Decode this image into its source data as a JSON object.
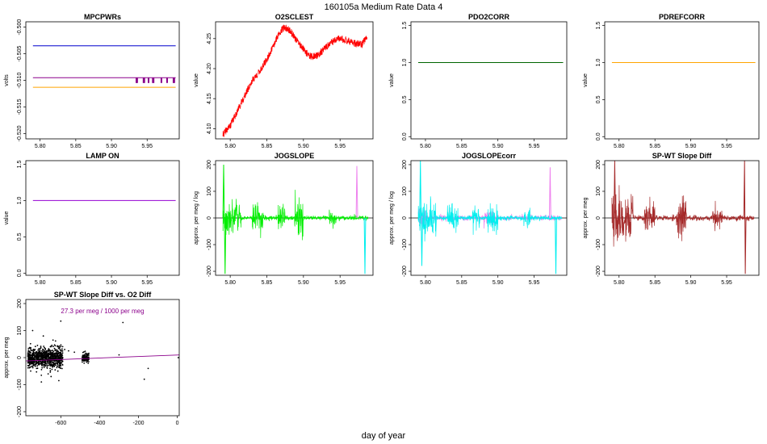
{
  "figure": {
    "title": "160105a   Medium Rate Data 4",
    "xlabel": "day of year"
  },
  "chart_data": [
    {
      "id": "mpcpwrs",
      "type": "line",
      "title": "MPCPWRs",
      "ylabel": "volts",
      "xlim": [
        5.78,
        5.995
      ],
      "ylim": [
        -0.521,
        -0.499
      ],
      "xticks": [
        5.8,
        5.85,
        5.9,
        5.95
      ],
      "xtick_labels": [
        "5.80",
        "5.85",
        "5.90",
        "5.95"
      ],
      "yticks": [
        -0.52,
        -0.515,
        -0.51,
        -0.505,
        -0.5
      ],
      "ytick_labels": [
        "-0.520",
        "-0.515",
        "-0.510",
        "-0.505",
        "-0.500"
      ],
      "ytick_rotate": true,
      "series": [
        {
          "color": "#0000cd",
          "x": [
            5.79,
            5.99
          ],
          "y": [
            -0.5035,
            -0.5035
          ]
        },
        {
          "color": "#8b008b",
          "x": [
            5.79,
            5.99
          ],
          "y": [
            -0.5095,
            -0.5095
          ]
        },
        {
          "color": "#ffa500",
          "x": [
            5.79,
            5.99
          ],
          "y": [
            -0.5113,
            -0.5113
          ]
        }
      ],
      "spikes": {
        "color": "#8b008b",
        "y_from": -0.5095,
        "y_to": -0.5105,
        "x": [
          5.935,
          5.936,
          5.945,
          5.946,
          5.952,
          5.958,
          5.959,
          5.97,
          5.978,
          5.987,
          5.988
        ]
      }
    },
    {
      "id": "o2sclest",
      "type": "line",
      "title": "O2SCLEST",
      "ylabel": "value",
      "xlim": [
        5.78,
        5.995
      ],
      "ylim": [
        4.083,
        4.278
      ],
      "xticks": [
        5.8,
        5.85,
        5.9,
        5.95
      ],
      "xtick_labels": [
        "5.80",
        "5.85",
        "5.90",
        "5.95"
      ],
      "yticks": [
        4.1,
        4.15,
        4.2,
        4.25
      ],
      "ytick_labels": [
        "4.10",
        "4.15",
        "4.20",
        "4.25"
      ],
      "ytick_rotate": true,
      "series": [
        {
          "color": "#ff0000",
          "noise": 0.012,
          "x": [
            5.79,
            5.8,
            5.81,
            5.82,
            5.83,
            5.84,
            5.85,
            5.86,
            5.865,
            5.87,
            5.875,
            5.88,
            5.885,
            5.89,
            5.895,
            5.9,
            5.905,
            5.91,
            5.92,
            5.93,
            5.94,
            5.95,
            5.96,
            5.97,
            5.98,
            5.987
          ],
          "y": [
            4.09,
            4.105,
            4.13,
            4.155,
            4.18,
            4.195,
            4.215,
            4.24,
            4.255,
            4.265,
            4.268,
            4.265,
            4.258,
            4.248,
            4.24,
            4.232,
            4.225,
            4.22,
            4.222,
            4.235,
            4.245,
            4.25,
            4.247,
            4.242,
            4.24,
            4.255
          ]
        }
      ]
    },
    {
      "id": "pdo2corr",
      "type": "line",
      "title": "PDO2CORR",
      "ylabel": "value",
      "xlim": [
        5.78,
        5.995
      ],
      "ylim": [
        -0.03,
        1.55
      ],
      "xticks": [
        5.8,
        5.85,
        5.9,
        5.95
      ],
      "xtick_labels": [
        "5.80",
        "5.85",
        "5.90",
        "5.95"
      ],
      "yticks": [
        0.0,
        0.5,
        1.0,
        1.5
      ],
      "ytick_labels": [
        "0.0",
        "0.5",
        "1.0",
        "1.5"
      ],
      "ytick_rotate": true,
      "series": [
        {
          "color": "#006400",
          "x": [
            5.79,
            5.99
          ],
          "y": [
            1.0,
            1.0
          ]
        }
      ]
    },
    {
      "id": "pdrefcorr",
      "type": "line",
      "title": "PDREFCORR",
      "ylabel": "value",
      "xlim": [
        5.78,
        5.995
      ],
      "ylim": [
        -0.03,
        1.55
      ],
      "xticks": [
        5.8,
        5.85,
        5.9,
        5.95
      ],
      "xtick_labels": [
        "5.80",
        "5.85",
        "5.90",
        "5.95"
      ],
      "yticks": [
        0.0,
        0.5,
        1.0,
        1.5
      ],
      "ytick_labels": [
        "0.0",
        "0.5",
        "1.0",
        "1.5"
      ],
      "ytick_rotate": true,
      "series": [
        {
          "color": "#ffa500",
          "x": [
            5.79,
            5.99
          ],
          "y": [
            1.0,
            1.0
          ]
        }
      ]
    },
    {
      "id": "lampon",
      "type": "line",
      "title": "LAMP ON",
      "ylabel": "value",
      "xlim": [
        5.78,
        5.995
      ],
      "ylim": [
        -0.03,
        1.55
      ],
      "xticks": [
        5.8,
        5.85,
        5.9,
        5.95
      ],
      "xtick_labels": [
        "5.80",
        "5.85",
        "5.90",
        "5.95"
      ],
      "yticks": [
        0.0,
        0.5,
        1.0,
        1.5
      ],
      "ytick_labels": [
        "0.0",
        "0.5",
        "1.0",
        "1.5"
      ],
      "ytick_rotate": true,
      "series": [
        {
          "color": "#9400d3",
          "x": [
            5.79,
            5.99
          ],
          "y": [
            1.0,
            1.0
          ]
        }
      ]
    },
    {
      "id": "jogslope",
      "type": "line",
      "title": "JOGSLOPE",
      "ylabel": "approx. per meg / log",
      "xlim": [
        5.78,
        5.995
      ],
      "ylim": [
        -215,
        215
      ],
      "xticks": [
        5.8,
        5.85,
        5.9,
        5.95
      ],
      "xtick_labels": [
        "5.80",
        "5.85",
        "5.90",
        "5.95"
      ],
      "yticks": [
        -200,
        -100,
        0,
        100,
        200
      ],
      "ytick_labels": [
        "-200",
        "-100",
        "0",
        "100",
        "200"
      ],
      "ytick_rotate": true,
      "zero_line": true,
      "series": [
        {
          "color": "#00ee00",
          "noisy": true,
          "x_from": 5.79,
          "x_to": 5.988,
          "n": 700,
          "seed": 3,
          "bursts": [
            [
              5.79,
              5.815,
              60
            ],
            [
              5.83,
              5.845,
              55
            ],
            [
              5.865,
              5.875,
              45
            ],
            [
              5.888,
              5.9,
              70
            ],
            [
              5.935,
              5.945,
              35
            ]
          ],
          "base": 8
        },
        {
          "color": "#ee82ee",
          "x": [
            5.972,
            5.973,
            5.974
          ],
          "y": [
            0,
            195,
            0
          ]
        },
        {
          "color": "#00eeee",
          "x": [
            5.983,
            5.984,
            5.985
          ],
          "y": [
            0,
            -210,
            0
          ]
        },
        {
          "color": "#00ee00",
          "x": [
            5.79,
            5.791,
            5.792,
            5.793,
            5.794,
            5.795
          ],
          "y": [
            0,
            200,
            0,
            -210,
            0,
            0
          ]
        }
      ]
    },
    {
      "id": "jogslopecorr",
      "type": "line",
      "title": "JOGSLOPEcorr",
      "ylabel": "approx. per meg / log",
      "xlim": [
        5.78,
        5.995
      ],
      "ylim": [
        -215,
        215
      ],
      "xticks": [
        5.8,
        5.85,
        5.9,
        5.95
      ],
      "xtick_labels": [
        "5.80",
        "5.85",
        "5.90",
        "5.95"
      ],
      "yticks": [
        -200,
        -100,
        0,
        100,
        200
      ],
      "ytick_labels": [
        "-200",
        "-100",
        "0",
        "100",
        "200"
      ],
      "ytick_rotate": true,
      "zero_line": true,
      "series": [
        {
          "color": "#ee82ee",
          "noisy": true,
          "x_from": 5.79,
          "x_to": 5.988,
          "n": 600,
          "seed": 7,
          "bursts": [
            [
              5.79,
              5.8,
              30
            ],
            [
              5.88,
              5.895,
              30
            ]
          ],
          "base": 10
        },
        {
          "color": "#00eeee",
          "noisy": true,
          "x_from": 5.79,
          "x_to": 5.988,
          "n": 700,
          "seed": 11,
          "bursts": [
            [
              5.79,
              5.815,
              70
            ],
            [
              5.83,
              5.845,
              50
            ],
            [
              5.865,
              5.875,
              45
            ],
            [
              5.885,
              5.9,
              60
            ],
            [
              5.935,
              5.945,
              35
            ]
          ],
          "base": 8
        },
        {
          "color": "#00eeee",
          "x": [
            5.792,
            5.793,
            5.794,
            5.795,
            5.796
          ],
          "y": [
            0,
            215,
            0,
            -180,
            0
          ]
        },
        {
          "color": "#ee82ee",
          "x": [
            5.971,
            5.972,
            5.973
          ],
          "y": [
            0,
            190,
            0
          ]
        },
        {
          "color": "#00eeee",
          "x": [
            5.979,
            5.98,
            5.981
          ],
          "y": [
            0,
            -210,
            0
          ]
        }
      ]
    },
    {
      "id": "spwtdiff",
      "type": "line",
      "title": "SP-WT Slope Diff",
      "ylabel": "approx. per meg",
      "xlim": [
        5.78,
        5.995
      ],
      "ylim": [
        -215,
        215
      ],
      "xticks": [
        5.8,
        5.85,
        5.9,
        5.95
      ],
      "xtick_labels": [
        "5.80",
        "5.85",
        "5.90",
        "5.95"
      ],
      "yticks": [
        -200,
        -100,
        0,
        100,
        200
      ],
      "ytick_labels": [
        "-200",
        "-100",
        "0",
        "100",
        "200"
      ],
      "ytick_rotate": true,
      "zero_line": true,
      "series": [
        {
          "color": "#a52a2a",
          "noisy": true,
          "x_from": 5.79,
          "x_to": 5.988,
          "n": 700,
          "seed": 19,
          "bursts": [
            [
              5.79,
              5.82,
              90
            ],
            [
              5.835,
              5.85,
              60
            ],
            [
              5.88,
              5.895,
              80
            ],
            [
              5.93,
              5.945,
              40
            ]
          ],
          "base": 10
        },
        {
          "color": "#a52a2a",
          "x": [
            5.793,
            5.794,
            5.795,
            5.796
          ],
          "y": [
            0,
            215,
            0,
            0
          ]
        },
        {
          "color": "#a52a2a",
          "x": [
            5.974,
            5.975,
            5.976,
            5.977,
            5.978
          ],
          "y": [
            0,
            215,
            -210,
            0,
            0
          ]
        }
      ]
    },
    {
      "id": "spwtvso2",
      "type": "scatter",
      "title": "SP-WT Slope Diff vs. O2 Diff",
      "ylabel": "approx. per meg",
      "xlim": [
        -780,
        10
      ],
      "ylim": [
        -215,
        215
      ],
      "xticks": [
        -600,
        -400,
        -200,
        0
      ],
      "xtick_labels": [
        "-600",
        "-400",
        "-200",
        "0"
      ],
      "yticks": [
        -200,
        -100,
        0,
        100,
        200
      ],
      "ytick_labels": [
        "-200",
        "-100",
        "0",
        "100",
        "200"
      ],
      "ytick_rotate": true,
      "annotation": "27.3 per meg / 1000 per meg",
      "fit": {
        "color": "#8b008b",
        "x": [
          -780,
          10
        ],
        "y": [
          -12,
          10
        ]
      },
      "clusters": [
        {
          "x_from": -770,
          "x_to": -590,
          "sd": 18,
          "n": 900,
          "seed": 23
        },
        {
          "x_from": -490,
          "x_to": -455,
          "sd": 8,
          "n": 120,
          "seed": 29
        }
      ],
      "points": {
        "x": [
          -745,
          -690,
          -665,
          -640,
          -610,
          -600,
          -580,
          -560,
          -530,
          -280,
          -300,
          -170,
          -150,
          5,
          -720,
          -700,
          -650
        ],
        "y": [
          100,
          80,
          -60,
          65,
          -85,
          135,
          30,
          25,
          20,
          130,
          10,
          -80,
          -40,
          0,
          45,
          -90,
          -70
        ]
      }
    }
  ]
}
